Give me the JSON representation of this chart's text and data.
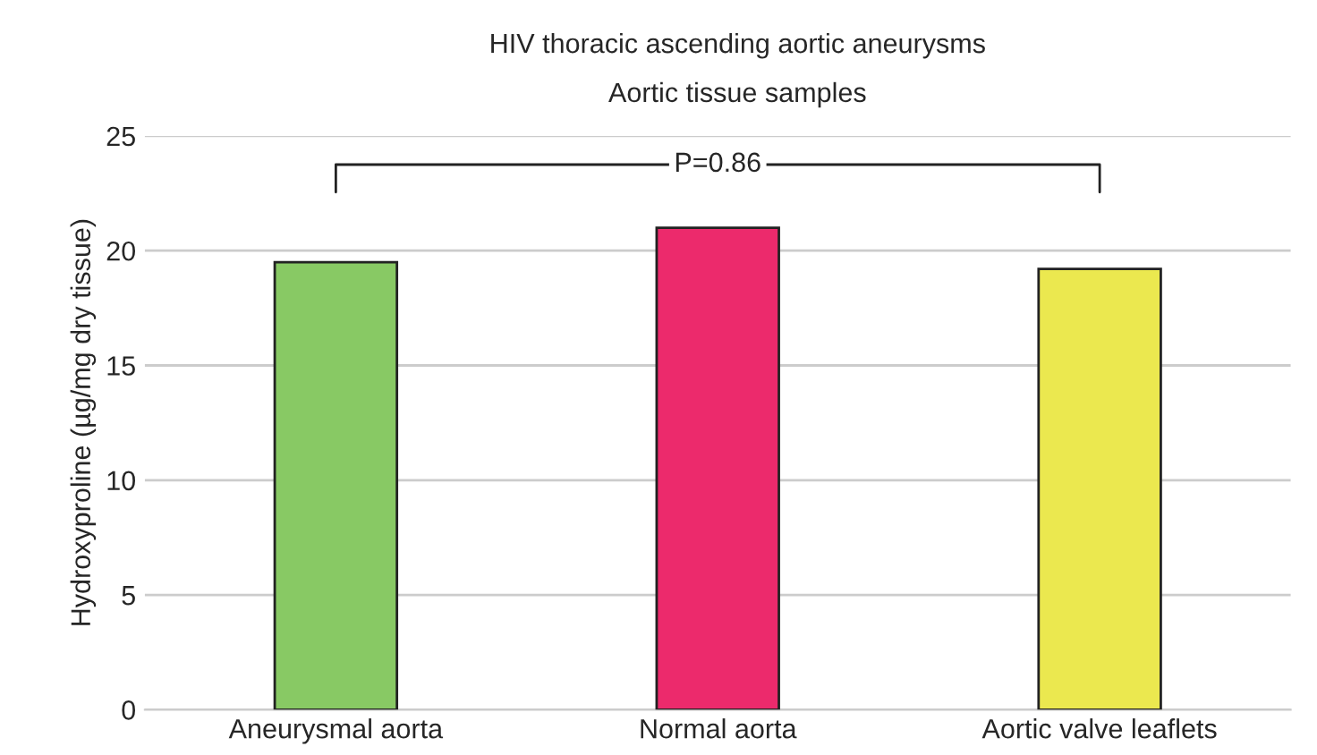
{
  "chart_data": {
    "type": "bar",
    "title": "HIV thoracic ascending aortic aneurysms",
    "subtitle": "Aortic tissue samples",
    "ylabel": "Hydroxyproline (µg/mg dry tissue)",
    "categories": [
      "Aneurysmal aorta",
      "Normal aorta",
      "Aortic valve leaflets"
    ],
    "values": [
      19.5,
      21.0,
      19.2
    ],
    "colors": [
      "#88c964",
      "#ec2a6c",
      "#ebe84f"
    ],
    "ylim": [
      0,
      25
    ],
    "yticks": [
      0,
      5,
      10,
      15,
      20,
      25
    ],
    "grid": "y",
    "annotations": [
      "P=0.86"
    ]
  }
}
